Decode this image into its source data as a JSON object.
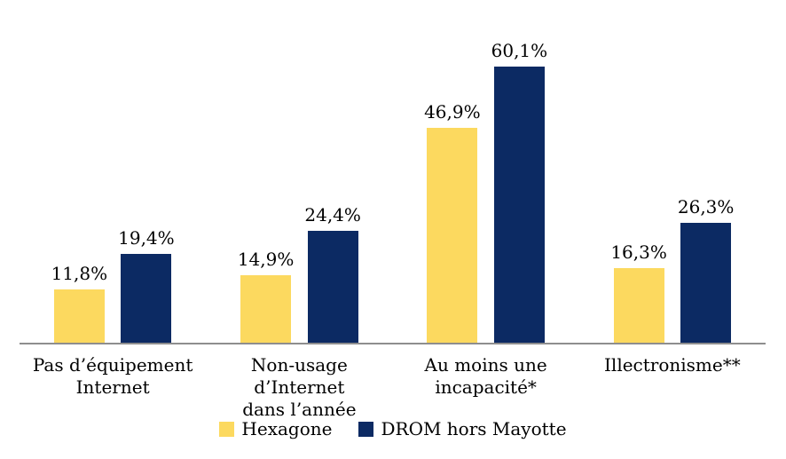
{
  "chart_data": {
    "type": "bar",
    "title": "",
    "xlabel": "",
    "ylabel": "",
    "ylim": [
      0,
      71
    ],
    "grid": false,
    "legend_position": "bottom",
    "categories": [
      "Pas d’équipement\nInternet",
      "Non-usage d’Internet\ndans l’année",
      "Au moins une\nincapacité*",
      "Illectronisme**"
    ],
    "series": [
      {
        "name": "Hexagone",
        "color": "#FCD95F",
        "values": [
          11.8,
          14.9,
          46.9,
          16.3
        ],
        "value_labels": [
          "11,8%",
          "14,9%",
          "46,9%",
          "16,3%"
        ]
      },
      {
        "name": "DROM hors Mayotte",
        "color": "#0C2A63",
        "values": [
          19.4,
          24.4,
          60.1,
          26.3
        ],
        "value_labels": [
          "19,4%",
          "24,4%",
          "60,1%",
          "26,3%"
        ]
      }
    ]
  },
  "legend": {
    "items": [
      {
        "label": "Hexagone",
        "color": "#FCD95F"
      },
      {
        "label": "DROM hors Mayotte",
        "color": "#0C2A63"
      }
    ]
  },
  "colors": {
    "background": "#FFFFFF",
    "axis_line": "#8E8E8E",
    "label_text": "#000000"
  }
}
